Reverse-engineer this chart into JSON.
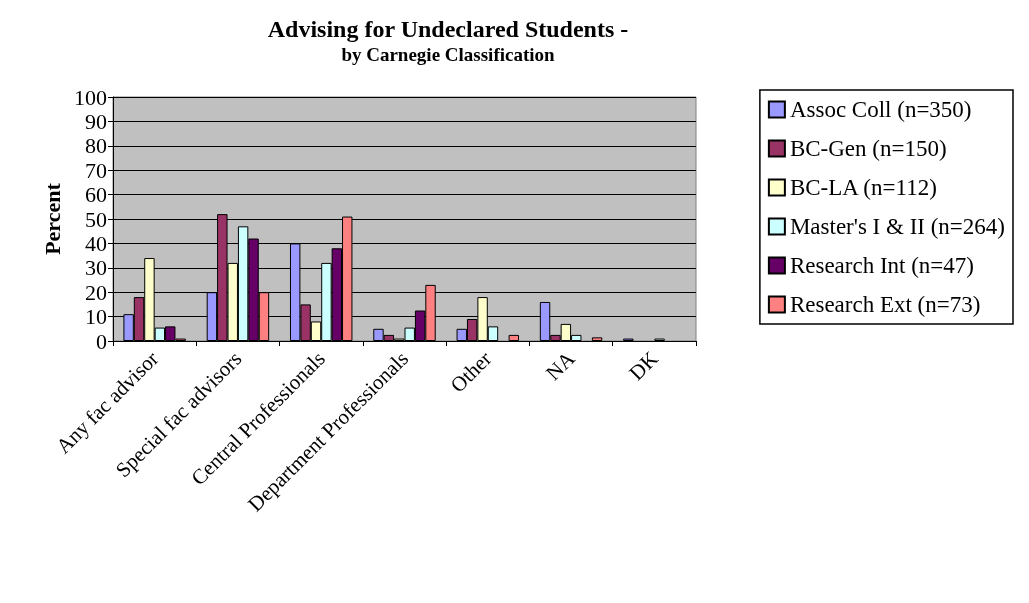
{
  "chart_data": {
    "type": "bar",
    "title": "Advising for Undeclared Students -",
    "subtitle": "by Carnegie Classification",
    "ylabel": "Percent",
    "categories": [
      "Any fac advisor",
      "Special fac advisors",
      "Central Professionals",
      "Department Professionals",
      "Other",
      "NA",
      "DK"
    ],
    "series": [
      {
        "name": "Assoc Coll (n=350)",
        "color": "#9999ff",
        "values": [
          11,
          20,
          40,
          5,
          5,
          16,
          1
        ]
      },
      {
        "name": "BC-Gen (n=150)",
        "color": "#993366",
        "values": [
          18,
          52,
          15,
          2.5,
          9,
          2.5,
          null
        ]
      },
      {
        "name": "BC-LA (n=112)",
        "color": "#ffffcc",
        "values": [
          34,
          32,
          8,
          1,
          18,
          7,
          null
        ]
      },
      {
        "name": "Master's I & II (n=264)",
        "color": "#ccffff",
        "values": [
          5.5,
          47,
          32,
          5.5,
          6,
          2.5,
          1
        ]
      },
      {
        "name": "Research Int (n=47)",
        "color": "#660066",
        "values": [
          6,
          42,
          38,
          12.5,
          null,
          null,
          null
        ]
      },
      {
        "name": "Research Ext (n=73)",
        "color": "#ff8080",
        "values": [
          1,
          20,
          51,
          23,
          2.5,
          1.5,
          null
        ]
      }
    ],
    "ylim": [
      0,
      100
    ],
    "yticks": [
      0,
      10,
      20,
      30,
      40,
      50,
      60,
      70,
      80,
      90,
      100
    ],
    "grid": "y",
    "legend": "right"
  }
}
